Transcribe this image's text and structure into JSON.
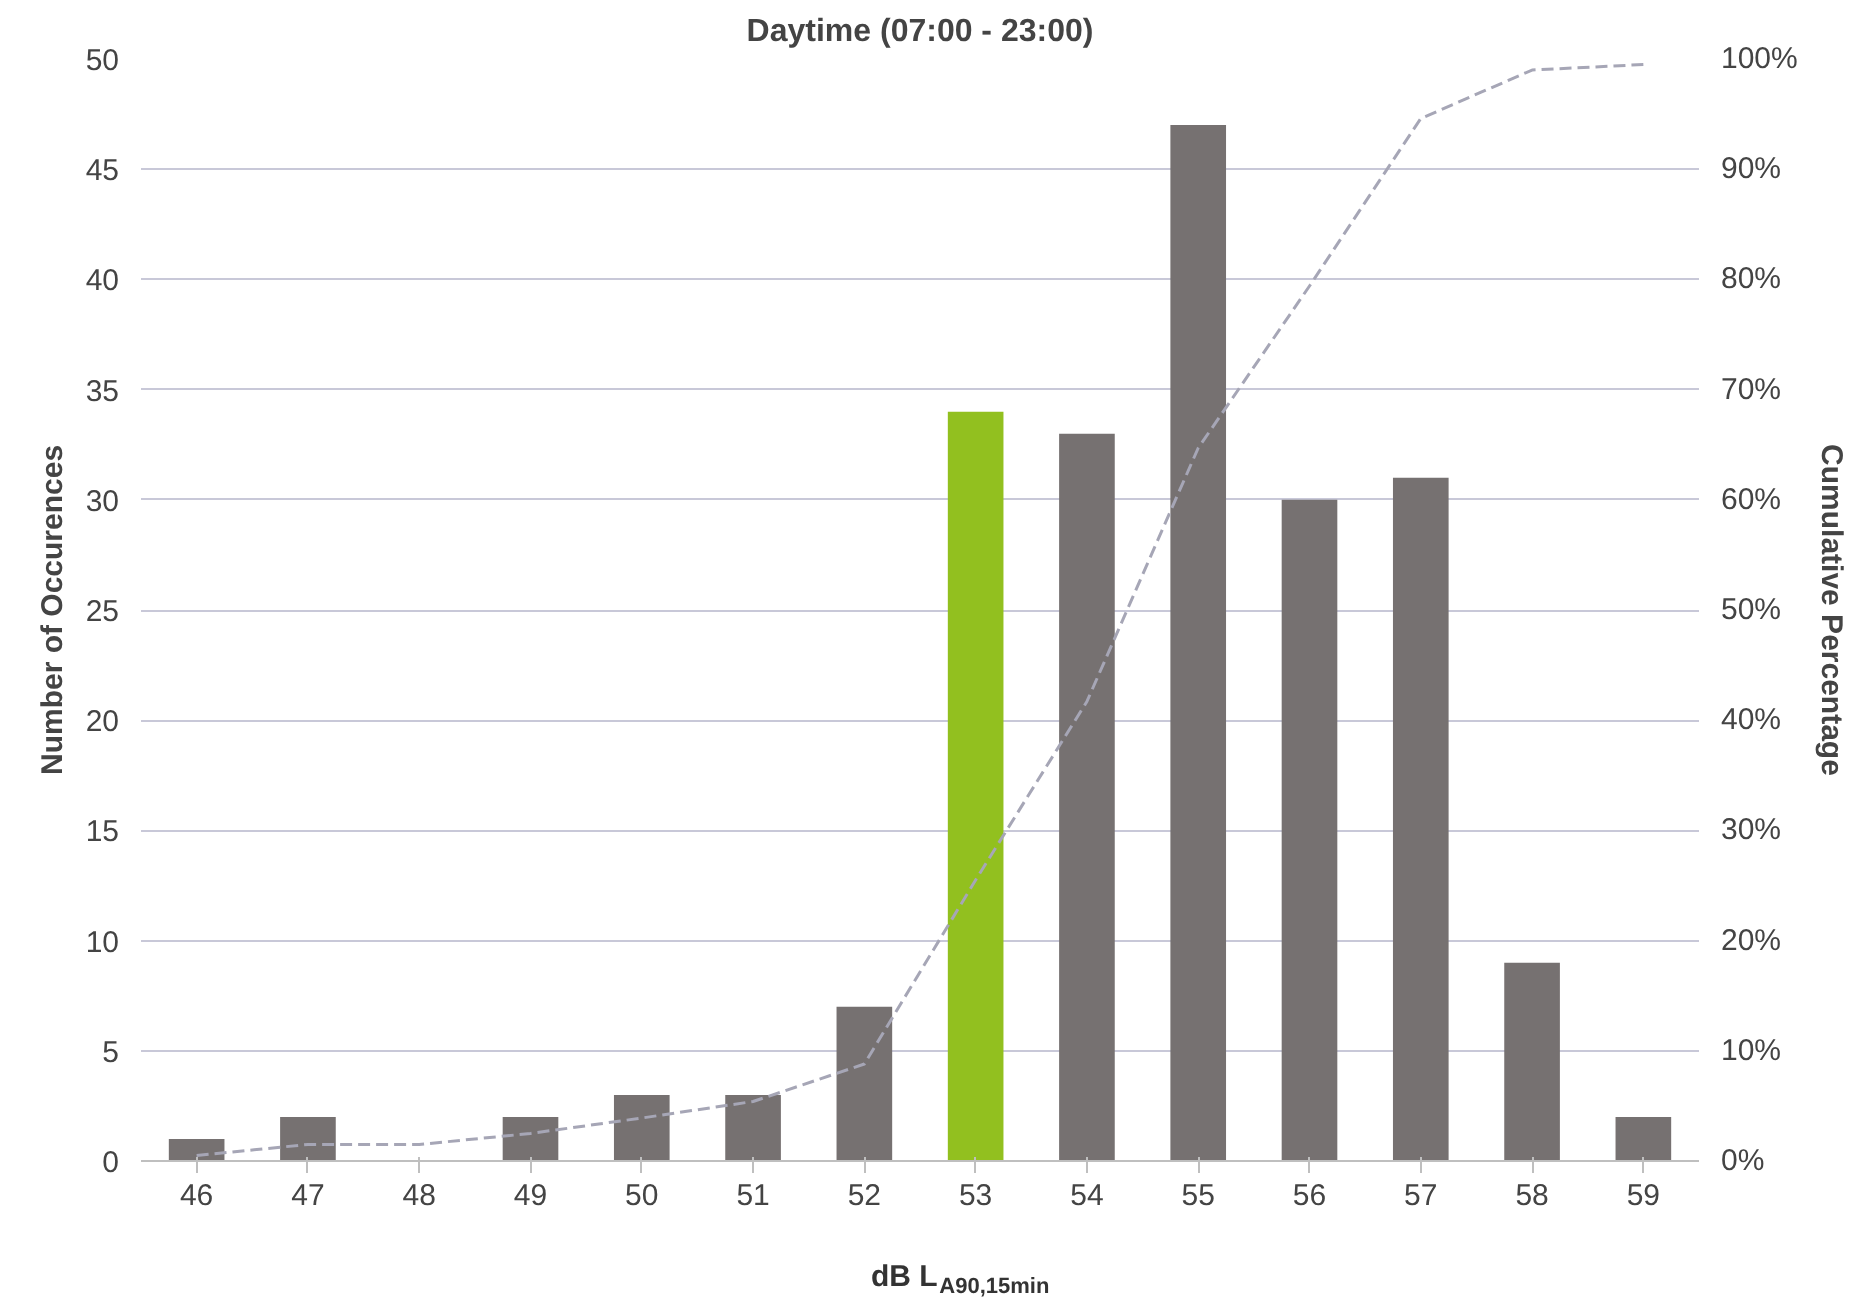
{
  "chart_data": {
    "type": "bar",
    "title": "Daytime (07:00 - 23:00)",
    "xlabel": "dB L$_{A90,15min}$",
    "ylabel": "Number of Occurences",
    "y2label": "Cumulative Percentage",
    "categories": [
      "46",
      "47",
      "48",
      "49",
      "50",
      "51",
      "52",
      "53",
      "54",
      "55",
      "56",
      "57",
      "58",
      "59"
    ],
    "series": [
      {
        "colors": [
          "#767171",
          "#767171",
          "#767171",
          "#767171",
          "#767171",
          "#767171",
          "#767171",
          "#92c01f",
          "#767171",
          "#767171",
          "#767171",
          "#767171",
          "#767171",
          "#767171"
        ],
        "values": [
          1,
          2,
          0,
          2,
          3,
          3,
          7,
          34,
          33,
          47,
          30,
          31,
          9,
          2
        ]
      },
      {
        "type": "line",
        "axis": "y2",
        "color": "#a6a6b6",
        "line_style": "dashed",
        "values": [
          0.5,
          1.5,
          1.5,
          2.5,
          3.9,
          5.4,
          8.8,
          25.5,
          41.7,
          64.7,
          79.4,
          94.6,
          99,
          99.5
        ]
      }
    ],
    "ylim": [
      0,
      50
    ],
    "yticks": [
      0,
      5,
      10,
      15,
      20,
      25,
      30,
      35,
      40,
      45,
      50
    ],
    "y2lim": [
      0,
      100
    ],
    "y2ticks": [
      {
        "value": 0,
        "label": "0%"
      },
      {
        "value": 10,
        "label": "10%"
      },
      {
        "value": 20,
        "label": "20%"
      },
      {
        "value": 30,
        "label": "30%"
      },
      {
        "value": 40,
        "label": "40%"
      },
      {
        "value": 50,
        "label": "50%"
      },
      {
        "value": 60,
        "label": "60%"
      },
      {
        "value": 70,
        "label": "70%"
      },
      {
        "value": 80,
        "label": "80%"
      },
      {
        "value": 90,
        "label": "90%"
      },
      {
        "value": 100,
        "label": "100%"
      }
    ],
    "grid": "y"
  }
}
